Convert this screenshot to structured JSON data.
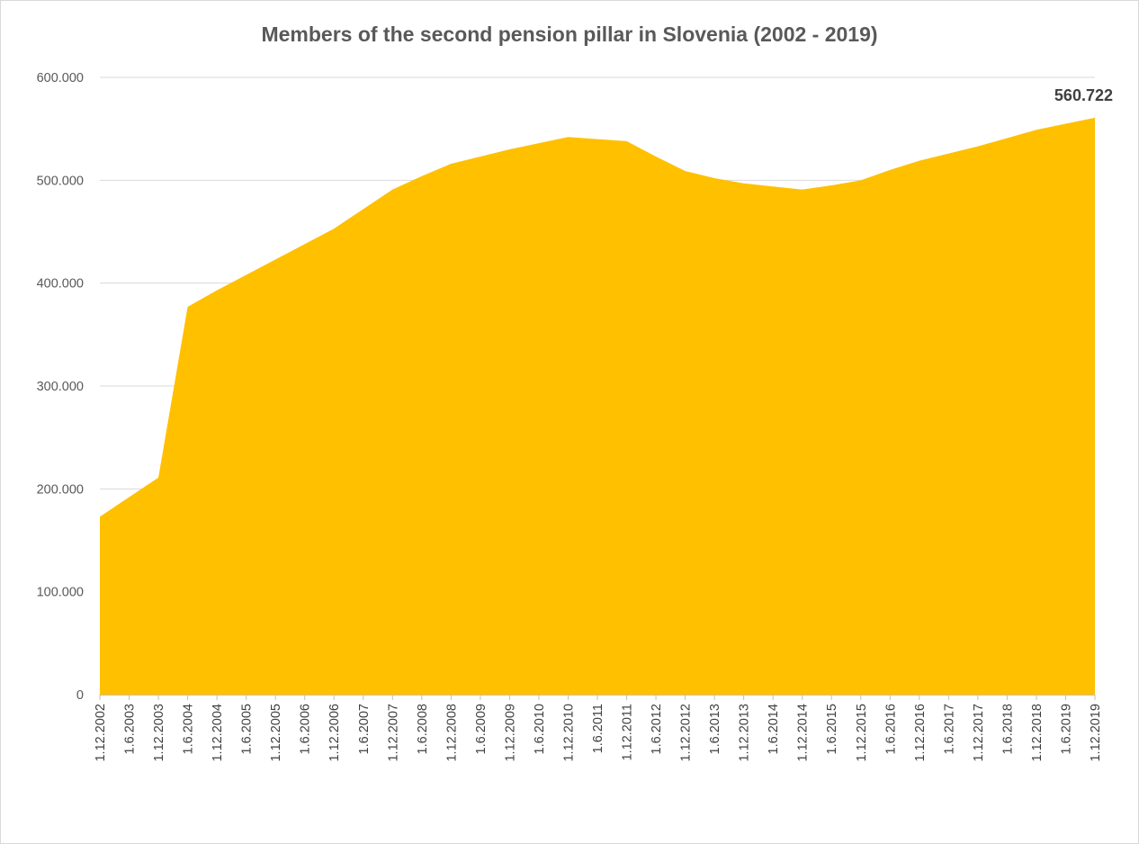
{
  "chart_data": {
    "type": "area",
    "title": "Members of the second pension pillar in Slovenia (2002 - 2019)",
    "xlabel": "",
    "ylabel": "",
    "ylim": [
      0,
      600000
    ],
    "y_ticks": [
      0,
      100000,
      200000,
      300000,
      400000,
      500000,
      600000
    ],
    "y_tick_labels": [
      "0",
      "100.000",
      "200.000",
      "300.000",
      "400.000",
      "500.000",
      "600.000"
    ],
    "grid": true,
    "legend": "none",
    "color": "#FFC000",
    "categories": [
      "1.12.2002",
      "1.6.2003",
      "1.12.2003",
      "1.6.2004",
      "1.12.2004",
      "1.6.2005",
      "1.12.2005",
      "1.6.2006",
      "1.12.2006",
      "1.6.2007",
      "1.12.2007",
      "1.6.2008",
      "1.12.2008",
      "1.6.2009",
      "1.12.2009",
      "1.6.2010",
      "1.12.2010",
      "1.6.2011",
      "1.12.2011",
      "1.6.2012",
      "1.12.2012",
      "1.6.2013",
      "1.12.2013",
      "1.6.2014",
      "1.12.2014",
      "1.6.2015",
      "1.12.2015",
      "1.6.2016",
      "1.12.2016",
      "1.6.2017",
      "1.12.2017",
      "1.6.2018",
      "1.12.2018",
      "1.6.2019",
      "1.12.2019"
    ],
    "values": [
      173000,
      192000,
      211000,
      377000,
      393000,
      408000,
      423000,
      438000,
      453000,
      472000,
      491000,
      504000,
      516000,
      523000,
      530000,
      536000,
      542000,
      540000,
      538000,
      523000,
      509000,
      502000,
      497000,
      494000,
      491000,
      495000,
      500000,
      510000,
      519000,
      526000,
      533000,
      541000,
      549000,
      555000,
      560722
    ],
    "data_labels": [
      {
        "index": 34,
        "text": "560.722"
      }
    ]
  }
}
